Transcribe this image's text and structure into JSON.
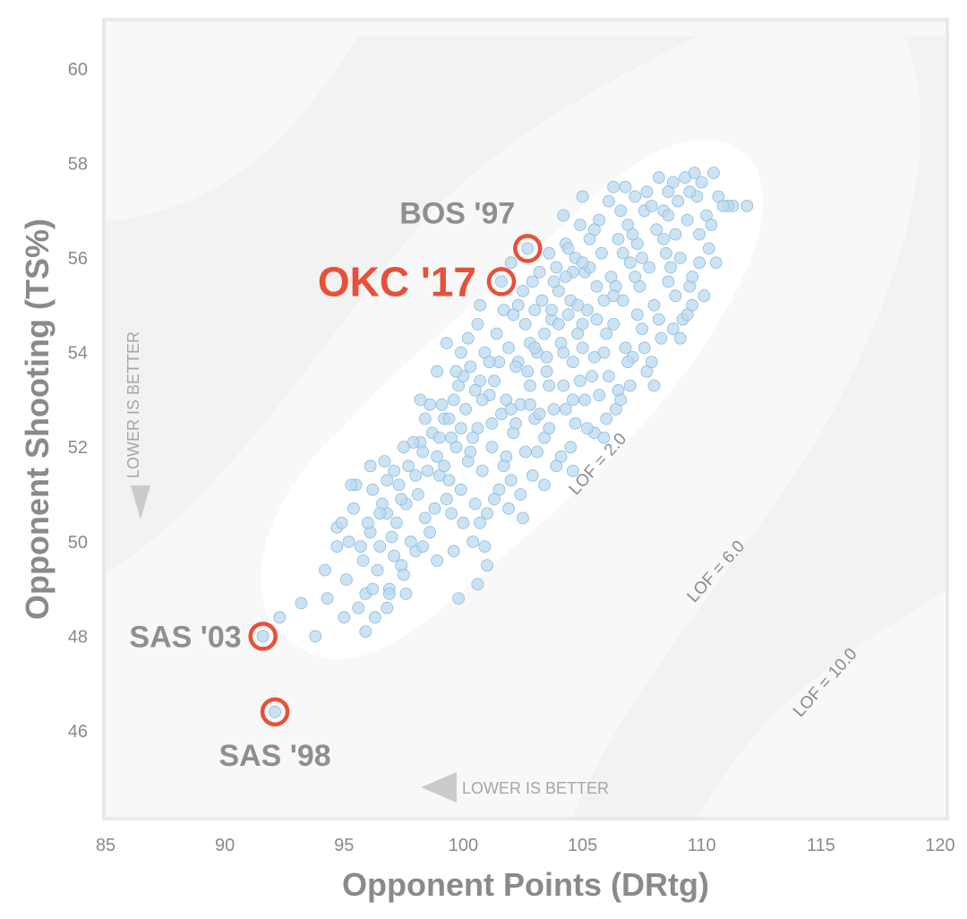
{
  "chart_data": {
    "type": "scatter",
    "title": "",
    "xlabel": "Opponent Points (DRtg)",
    "ylabel": "Opponent Shooting (TS%)",
    "xlim": [
      85,
      120
    ],
    "ylim": [
      44.2,
      61.0
    ],
    "x_ticks": [
      "85",
      "90",
      "95",
      "100",
      "105",
      "110",
      "115",
      "120"
    ],
    "y_ticks": [
      "46",
      "48",
      "50",
      "52",
      "54",
      "56",
      "58",
      "60"
    ],
    "grid": false,
    "point_color": "#bcd9ee",
    "highlight_color": "#e8503a",
    "background_color": "#f8f8f8",
    "highlights": [
      {
        "label": "OKC '17",
        "x": 101.6,
        "y": 55.5,
        "emphasis": true
      },
      {
        "label": "BOS '97",
        "x": 102.7,
        "y": 56.2,
        "emphasis": false
      },
      {
        "label": "SAS '03",
        "x": 91.6,
        "y": 48.0,
        "emphasis": false
      },
      {
        "label": "SAS '98",
        "x": 92.1,
        "y": 46.4,
        "emphasis": false
      }
    ],
    "contour_labels": [
      "LOF = 2.0",
      "LOF = 6.0",
      "LOF = 10.0"
    ],
    "annotations": {
      "x_better": "LOWER IS BETTER",
      "y_better": "LOWER IS BETTER"
    },
    "points": [
      [
        94.7,
        50.3
      ],
      [
        95.4,
        50.7
      ],
      [
        96.1,
        50.2
      ],
      [
        96.8,
        50.6
      ],
      [
        97.3,
        51.2
      ],
      [
        95.8,
        49.6
      ],
      [
        96.5,
        49.9
      ],
      [
        97.0,
        50.1
      ],
      [
        97.6,
        50.8
      ],
      [
        98.1,
        51.0
      ],
      [
        98.4,
        50.5
      ],
      [
        99.0,
        51.4
      ],
      [
        99.3,
        50.9
      ],
      [
        96.2,
        51.1
      ],
      [
        95.1,
        49.2
      ],
      [
        94.3,
        48.8
      ],
      [
        93.8,
        48.0
      ],
      [
        95.6,
        48.6
      ],
      [
        96.3,
        48.4
      ],
      [
        96.9,
        49.0
      ],
      [
        97.4,
        49.5
      ],
      [
        98.0,
        49.8
      ],
      [
        98.6,
        50.2
      ],
      [
        99.5,
        50.6
      ],
      [
        99.9,
        51.1
      ],
      [
        100.2,
        51.7
      ],
      [
        99.7,
        52.0
      ],
      [
        98.9,
        51.8
      ],
      [
        98.2,
        52.1
      ],
      [
        97.7,
        51.6
      ],
      [
        97.1,
        51.5
      ],
      [
        96.6,
        50.8
      ],
      [
        100.5,
        50.8
      ],
      [
        100.8,
        51.5
      ],
      [
        101.2,
        52.0
      ],
      [
        100.6,
        52.4
      ],
      [
        100.1,
        52.8
      ],
      [
        99.6,
        53.0
      ],
      [
        99.2,
        52.6
      ],
      [
        98.7,
        52.3
      ],
      [
        101.0,
        50.6
      ],
      [
        101.5,
        51.1
      ],
      [
        101.8,
        51.8
      ],
      [
        102.1,
        52.3
      ],
      [
        101.6,
        52.7
      ],
      [
        101.1,
        53.1
      ],
      [
        100.7,
        53.4
      ],
      [
        100.3,
        53.7
      ],
      [
        99.8,
        53.3
      ],
      [
        102.4,
        52.9
      ],
      [
        102.8,
        53.3
      ],
      [
        102.3,
        53.8
      ],
      [
        101.9,
        54.1
      ],
      [
        101.4,
        54.4
      ],
      [
        102.6,
        54.6
      ],
      [
        103.1,
        54.0
      ],
      [
        103.5,
        53.6
      ],
      [
        103.0,
        52.6
      ],
      [
        103.4,
        52.2
      ],
      [
        103.8,
        52.8
      ],
      [
        104.2,
        53.3
      ],
      [
        104.6,
        53.8
      ],
      [
        104.1,
        54.2
      ],
      [
        103.7,
        54.7
      ],
      [
        103.3,
        55.1
      ],
      [
        104.0,
        55.3
      ],
      [
        104.4,
        54.8
      ],
      [
        104.8,
        54.4
      ],
      [
        105.2,
        54.9
      ],
      [
        105.6,
        55.4
      ],
      [
        105.1,
        55.7
      ],
      [
        104.7,
        56.0
      ],
      [
        105.4,
        53.5
      ],
      [
        105.9,
        54.0
      ],
      [
        106.3,
        54.6
      ],
      [
        106.7,
        55.1
      ],
      [
        106.2,
        55.6
      ],
      [
        105.8,
        56.1
      ],
      [
        106.5,
        56.4
      ],
      [
        107.0,
        55.9
      ],
      [
        107.4,
        55.4
      ],
      [
        107.8,
        55.8
      ],
      [
        107.3,
        56.3
      ],
      [
        106.9,
        56.7
      ],
      [
        107.6,
        57.0
      ],
      [
        108.1,
        56.6
      ],
      [
        108.5,
        56.1
      ],
      [
        108.9,
        56.5
      ],
      [
        108.4,
        57.0
      ],
      [
        109.0,
        57.2
      ],
      [
        109.4,
        56.8
      ],
      [
        109.8,
        57.3
      ],
      [
        109.3,
        57.7
      ],
      [
        108.8,
        57.6
      ],
      [
        110.2,
        56.9
      ],
      [
        110.7,
        57.3
      ],
      [
        111.3,
        57.1
      ],
      [
        111.9,
        57.1
      ],
      [
        111.1,
        57.1
      ],
      [
        110.5,
        57.8
      ],
      [
        109.7,
        57.8
      ],
      [
        108.6,
        57.4
      ],
      [
        107.9,
        57.1
      ],
      [
        107.2,
        57.3
      ],
      [
        106.6,
        57.0
      ],
      [
        108.2,
        57.7
      ],
      [
        105.7,
        56.8
      ],
      [
        106.1,
        57.2
      ],
      [
        104.9,
        56.7
      ],
      [
        104.3,
        56.3
      ],
      [
        103.9,
        55.8
      ],
      [
        104.5,
        55.1
      ],
      [
        106.0,
        52.6
      ],
      [
        106.5,
        53.2
      ],
      [
        107.1,
        53.9
      ],
      [
        107.5,
        54.5
      ],
      [
        108.0,
        55.0
      ],
      [
        108.6,
        55.5
      ],
      [
        109.1,
        56.0
      ],
      [
        109.5,
        55.4
      ],
      [
        109.9,
        55.9
      ],
      [
        110.3,
        56.2
      ],
      [
        108.3,
        54.3
      ],
      [
        107.7,
        53.6
      ],
      [
        109.2,
        54.7
      ],
      [
        109.6,
        55.0
      ],
      [
        110.6,
        55.9
      ],
      [
        107.0,
        53.3
      ],
      [
        105.5,
        52.3
      ],
      [
        104.5,
        52.0
      ],
      [
        103.9,
        51.6
      ],
      [
        102.9,
        51.4
      ],
      [
        102.4,
        51.0
      ],
      [
        101.9,
        50.7
      ],
      [
        100.4,
        50.0
      ],
      [
        100.9,
        49.9
      ],
      [
        95.2,
        50.0
      ],
      [
        95.9,
        48.9
      ],
      [
        96.4,
        49.4
      ],
      [
        97.5,
        49.3
      ],
      [
        98.3,
        49.9
      ],
      [
        98.8,
        50.7
      ],
      [
        99.4,
        51.3
      ],
      [
        98.5,
        51.5
      ],
      [
        97.2,
        50.4
      ],
      [
        96.0,
        50.4
      ],
      [
        95.5,
        51.2
      ],
      [
        96.7,
        51.7
      ],
      [
        97.9,
        52.1
      ],
      [
        99.1,
        52.9
      ],
      [
        100.0,
        53.5
      ],
      [
        100.9,
        54.0
      ],
      [
        101.7,
        54.9
      ],
      [
        102.5,
        55.3
      ],
      [
        103.2,
        55.7
      ],
      [
        103.6,
        56.1
      ],
      [
        104.2,
        56.9
      ],
      [
        105.0,
        57.3
      ],
      [
        105.3,
        56.4
      ],
      [
        104.6,
        53.0
      ],
      [
        103.6,
        53.3
      ],
      [
        102.7,
        53.6
      ],
      [
        101.3,
        53.4
      ],
      [
        100.4,
        52.2
      ],
      [
        99.5,
        52.2
      ],
      [
        98.6,
        52.9
      ],
      [
        99.9,
        54.0
      ],
      [
        100.6,
        54.6
      ],
      [
        101.8,
        53.0
      ],
      [
        102.2,
        52.5
      ],
      [
        103.2,
        52.7
      ],
      [
        104.7,
        52.5
      ],
      [
        105.7,
        53.1
      ],
      [
        106.8,
        54.1
      ],
      [
        107.3,
        54.8
      ],
      [
        108.7,
        55.8
      ],
      [
        106.4,
        55.4
      ],
      [
        105.3,
        55.8
      ],
      [
        104.6,
        55.7
      ],
      [
        103.8,
        55.5
      ],
      [
        105.0,
        54.1
      ],
      [
        106.0,
        54.4
      ],
      [
        105.5,
        53.9
      ],
      [
        104.9,
        53.4
      ],
      [
        103.4,
        54.4
      ],
      [
        102.8,
        54.2
      ],
      [
        102.1,
        54.8
      ],
      [
        101.5,
        53.8
      ],
      [
        100.5,
        53.2
      ],
      [
        99.4,
        52.6
      ],
      [
        98.4,
        52.6
      ],
      [
        97.5,
        52.0
      ],
      [
        96.8,
        51.3
      ],
      [
        96.1,
        51.6
      ],
      [
        95.3,
        51.2
      ],
      [
        94.9,
        50.4
      ],
      [
        95.7,
        49.9
      ],
      [
        96.2,
        49.0
      ],
      [
        96.8,
        48.6
      ],
      [
        97.6,
        48.9
      ],
      [
        98.9,
        49.6
      ],
      [
        99.6,
        49.8
      ],
      [
        100.7,
        50.4
      ],
      [
        101.3,
        50.9
      ],
      [
        102.0,
        51.3
      ],
      [
        102.6,
        51.9
      ],
      [
        103.6,
        52.4
      ],
      [
        104.3,
        52.8
      ],
      [
        105.1,
        53.0
      ],
      [
        106.1,
        53.5
      ],
      [
        106.9,
        53.8
      ],
      [
        107.6,
        54.1
      ],
      [
        108.2,
        54.7
      ],
      [
        108.9,
        55.2
      ],
      [
        109.6,
        55.6
      ],
      [
        110.1,
        55.2
      ],
      [
        109.1,
        54.3
      ],
      [
        110.4,
        56.7
      ],
      [
        109.9,
        56.5
      ],
      [
        107.5,
        56.0
      ],
      [
        106.7,
        56.1
      ],
      [
        105.9,
        55.1
      ],
      [
        104.8,
        55.0
      ],
      [
        104.0,
        54.6
      ],
      [
        103.0,
        54.9
      ],
      [
        102.3,
        55.0
      ],
      [
        100.2,
        54.3
      ],
      [
        99.7,
        53.6
      ],
      [
        98.2,
        53.0
      ],
      [
        98.9,
        53.6
      ],
      [
        99.3,
        54.2
      ],
      [
        100.7,
        55.0
      ],
      [
        102.0,
        55.9
      ],
      [
        102.9,
        55.5
      ],
      [
        104.4,
        56.2
      ],
      [
        106.3,
        57.5
      ],
      [
        106.8,
        57.5
      ],
      [
        107.7,
        57.4
      ],
      [
        108.4,
        56.4
      ],
      [
        107.2,
        55.6
      ],
      [
        106.3,
        55.2
      ],
      [
        105.6,
        54.7
      ],
      [
        105.0,
        54.6
      ],
      [
        104.2,
        54.0
      ],
      [
        103.5,
        53.9
      ],
      [
        102.8,
        52.9
      ],
      [
        102.0,
        52.8
      ],
      [
        101.2,
        52.5
      ],
      [
        100.3,
        51.9
      ],
      [
        99.2,
        51.6
      ],
      [
        98.0,
        51.4
      ],
      [
        97.4,
        50.9
      ],
      [
        96.5,
        50.6
      ],
      [
        92.3,
        48.4
      ],
      [
        93.2,
        48.7
      ],
      [
        94.2,
        49.4
      ],
      [
        94.7,
        49.9
      ],
      [
        95.0,
        48.4
      ],
      [
        95.9,
        48.1
      ],
      [
        96.9,
        48.9
      ],
      [
        97.1,
        49.7
      ],
      [
        97.8,
        50.0
      ],
      [
        100.0,
        50.4
      ],
      [
        101.7,
        51.6
      ],
      [
        103.1,
        51.9
      ],
      [
        104.1,
        51.8
      ],
      [
        105.2,
        52.4
      ],
      [
        106.4,
        52.8
      ],
      [
        107.9,
        53.8
      ],
      [
        108.8,
        54.5
      ],
      [
        109.4,
        54.8
      ],
      [
        108.0,
        53.3
      ],
      [
        106.6,
        53.0
      ],
      [
        105.9,
        52.2
      ],
      [
        101.0,
        49.5
      ],
      [
        100.6,
        49.1
      ],
      [
        99.8,
        48.8
      ],
      [
        104.6,
        51.5
      ],
      [
        103.4,
        51.2
      ],
      [
        102.5,
        50.5
      ],
      [
        109.5,
        57.4
      ],
      [
        110.0,
        57.6
      ],
      [
        110.9,
        57.1
      ],
      [
        108.6,
        56.9
      ],
      [
        107.1,
        56.5
      ],
      [
        105.5,
        56.6
      ],
      [
        105.0,
        55.9
      ],
      [
        104.3,
        55.6
      ],
      [
        103.7,
        54.9
      ],
      [
        103.0,
        54.1
      ],
      [
        102.2,
        53.7
      ],
      [
        101.1,
        53.8
      ],
      [
        100.8,
        53.0
      ],
      [
        99.9,
        52.4
      ],
      [
        99.0,
        52.2
      ],
      [
        98.3,
        51.9
      ]
    ]
  }
}
